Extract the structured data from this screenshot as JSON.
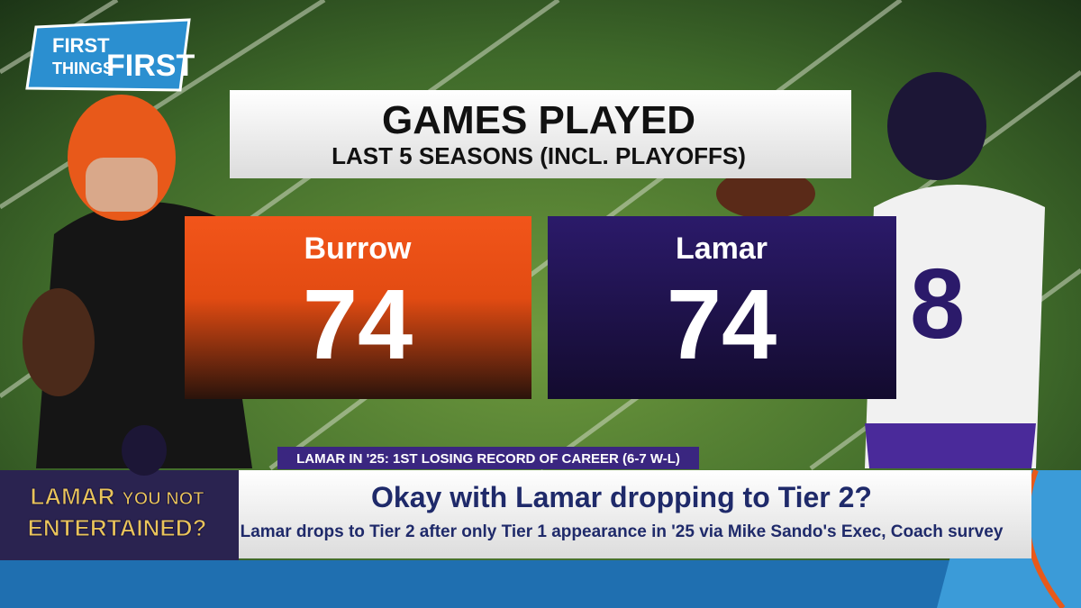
{
  "logo": {
    "line1": "FIRST",
    "line2": "THINGS",
    "line3": "FIRST"
  },
  "graphic": {
    "title": "GAMES PLAYED",
    "subtitle": "LAST 5 SEASONS (INCL. PLAYOFFS)",
    "players": [
      {
        "name": "Burrow",
        "value": 74
      },
      {
        "name": "Lamar",
        "value": 74
      }
    ]
  },
  "ticker": "LAMAR IN '25: 1ST LOSING RECORD OF CAREER (6-7 W-L)",
  "segment": {
    "line1": "LAMAR",
    "line2": "YOU NOT",
    "line3": "ENTERTAINED?"
  },
  "lower_third": {
    "headline": "Okay with Lamar dropping to Tier 2?",
    "subline": "Lamar drops to Tier 2 after only Tier 1 appearance in '25 via Mike Sando's Exec, Coach survey"
  }
}
